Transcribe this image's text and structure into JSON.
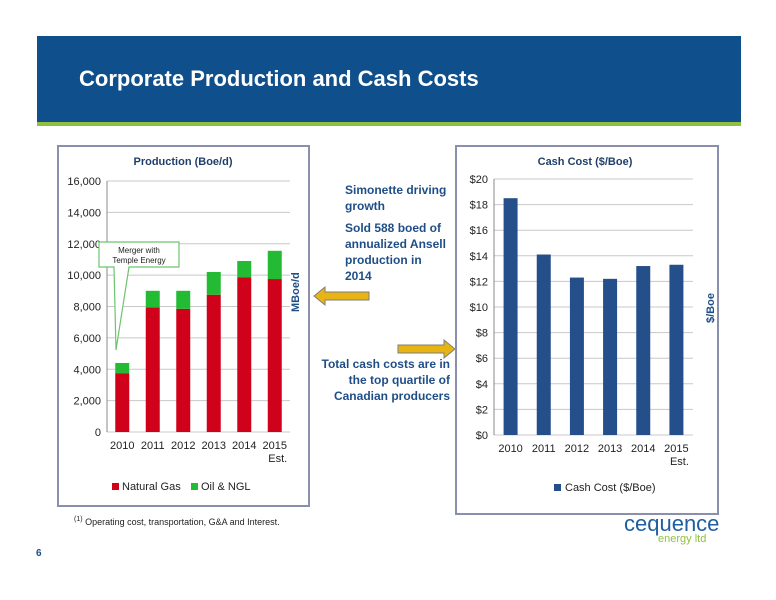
{
  "slide": {
    "title": "Corporate Production and Cash Costs",
    "page_number": "6",
    "footnote_marker": "(1)",
    "footnote_text": "Operating cost, transportation, G&A and Interest.",
    "logo_main": "cequence",
    "logo_sub": "energy ltd",
    "mboe_label": "MBoe/d",
    "dollar_boe_label": "$/Boe",
    "notes": {
      "line1": "Simonette driving",
      "line2": "growth",
      "sold1": "Sold 588 boed of",
      "sold2": "annualized Ansell",
      "sold3": "production in",
      "sold4": "2014",
      "cash1": "Total cash costs are in",
      "cash2": "the top quartile of",
      "cash3": "Canadian producers"
    },
    "colors": {
      "header": "#0f4f8c",
      "stripe": "#8fc03f",
      "arrow": "#e8b414"
    }
  },
  "chart_data": [
    {
      "type": "bar",
      "stacked": true,
      "title": "Production (Boe/d)",
      "categories": [
        "2010",
        "2011",
        "2012",
        "2013",
        "2014",
        "2015"
      ],
      "category_sublabels": [
        "",
        "",
        "",
        "",
        "",
        "Est."
      ],
      "series": [
        {
          "name": "Natural Gas",
          "color": "#d0021b",
          "values": [
            3750,
            7950,
            7850,
            8750,
            9850,
            9750
          ]
        },
        {
          "name": "Oil & NGL",
          "color": "#22bb33",
          "values": [
            650,
            1050,
            1150,
            1450,
            1050,
            1800
          ]
        }
      ],
      "ylim": [
        0,
        16000
      ],
      "yticks": [
        "0",
        "2,000",
        "4,000",
        "6,000",
        "8,000",
        "10,000",
        "12,000",
        "14,000",
        "16,000"
      ],
      "annotation": {
        "line1": "Merger with",
        "line2": "Temple Energy"
      },
      "grid": true,
      "legend": "bottom"
    },
    {
      "type": "bar",
      "title": "Cash Cost ($/Boe)",
      "categories": [
        "2010",
        "2011",
        "2012",
        "2013",
        "2014",
        "2015"
      ],
      "category_sublabels": [
        "",
        "",
        "",
        "",
        "",
        "Est."
      ],
      "series": [
        {
          "name": "Cash Cost ($/Boe)",
          "color": "#254f8a",
          "values": [
            18.5,
            14.1,
            12.3,
            12.2,
            13.2,
            13.3
          ]
        }
      ],
      "ylim": [
        0,
        20
      ],
      "yticks": [
        "$0",
        "$2",
        "$4",
        "$6",
        "$8",
        "$10",
        "$12",
        "$14",
        "$16",
        "$18",
        "$20"
      ],
      "grid": true,
      "legend": "bottom"
    }
  ]
}
